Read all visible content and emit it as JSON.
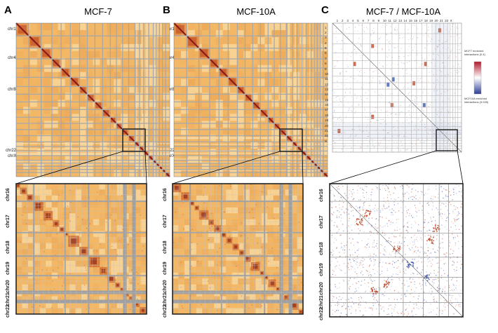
{
  "panels": [
    {
      "letter": "A",
      "title": "MCF-7",
      "top_labels": [
        "chr1",
        "chr4",
        "chr8",
        "chr22",
        "chrX"
      ],
      "zoom_labels": [
        "chr16",
        "chr17",
        "chr18",
        "chr19",
        "chr20",
        "chr21",
        "chr22"
      ],
      "type": "heat"
    },
    {
      "letter": "B",
      "title": "MCF-10A",
      "top_labels": [
        "chr1",
        "chr4",
        "chr8",
        "chr22",
        "chrX"
      ],
      "zoom_labels": [
        "chr16",
        "chr17",
        "chr18",
        "chr19",
        "chr20",
        "chr21",
        "chr22"
      ],
      "type": "heat"
    },
    {
      "letter": "C",
      "title": "MCF-7 / MCF-10A",
      "top_labels": [
        "1",
        "2",
        "3",
        "4",
        "5",
        "6",
        "7",
        "8",
        "9",
        "10",
        "11",
        "12",
        "13",
        "14",
        "15",
        "16",
        "17",
        "18",
        "19",
        "20",
        "21",
        "22",
        "X"
      ],
      "zoom_labels": [
        "chr16",
        "chr17",
        "chr18",
        "chr19",
        "chr20",
        "chr21",
        "chr22"
      ],
      "type": "diff"
    }
  ],
  "legend": {
    "top": "MCF7 enriched interactions (0.4)",
    "bottom": "MCF10A enriched interactions (3.025)"
  },
  "colors": {
    "heat_bg": "#f3b866",
    "heat_dark": "#8b1a1a",
    "grid": "#a8a8a8",
    "diff_red": "#b8401e",
    "diff_blue": "#2e4ea8"
  }
}
